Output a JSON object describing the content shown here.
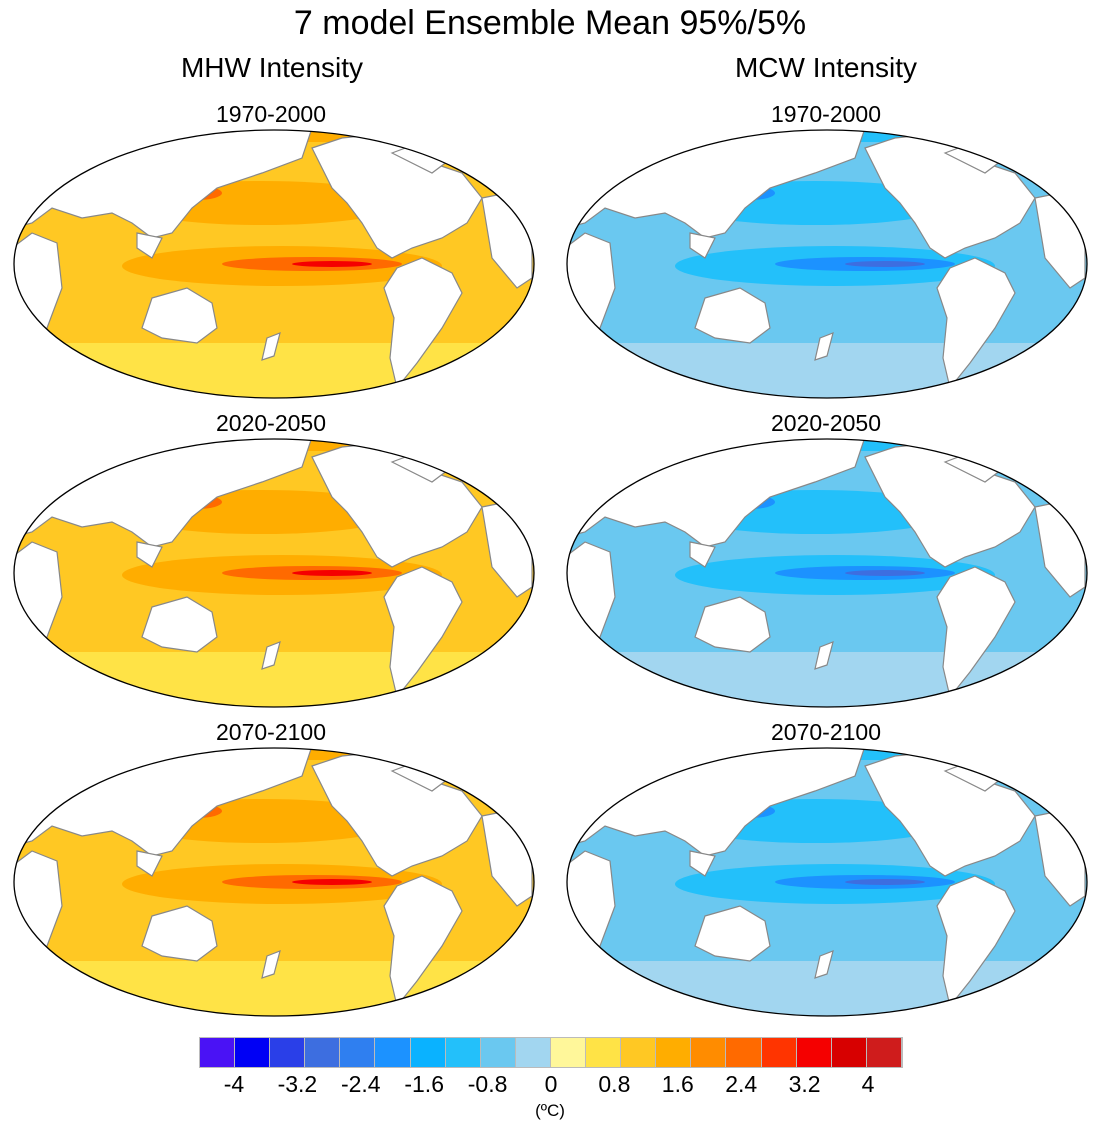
{
  "title": "7 model Ensemble Mean 95%/5%",
  "columns": [
    "MHW Intensity",
    "MCW Intensity"
  ],
  "periods": [
    "1970-2000",
    "2020-2050",
    "2070-2100"
  ],
  "chart_data": {
    "type": "heatmap",
    "title": "7 model Ensemble Mean 95%/5%",
    "panels": [
      {
        "variable": "MHW Intensity",
        "period": "1970-2000",
        "typical_range": [
          0.8,
          2.0
        ],
        "max_region": "equatorial Pacific",
        "max_value": 3.2
      },
      {
        "variable": "MHW Intensity",
        "period": "2020-2050",
        "typical_range": [
          0.8,
          2.0
        ],
        "max_region": "equatorial Pacific",
        "max_value": 3.2
      },
      {
        "variable": "MHW Intensity",
        "period": "2070-2100",
        "typical_range": [
          0.8,
          2.0
        ],
        "max_region": "equatorial Pacific",
        "max_value": 2.8
      },
      {
        "variable": "MCW Intensity",
        "period": "1970-2000",
        "typical_range": [
          -1.6,
          -0.4
        ],
        "min_region": "equatorial Pacific",
        "min_value": -3.2
      },
      {
        "variable": "MCW Intensity",
        "period": "2020-2050",
        "typical_range": [
          -1.6,
          -0.4
        ],
        "min_region": "equatorial Pacific",
        "min_value": -3.2
      },
      {
        "variable": "MCW Intensity",
        "period": "2070-2100",
        "typical_range": [
          -1.6,
          -0.4
        ],
        "min_region": "equatorial Pacific",
        "min_value": -2.8
      }
    ],
    "colorbar": {
      "labels": [
        "-4",
        "-3.2",
        "-2.4",
        "-1.6",
        "-0.8",
        "0",
        "0.8",
        "1.6",
        "2.4",
        "3.2",
        "4"
      ],
      "unit": "(ºC)",
      "colors": [
        "#4a12f5",
        "#0000f5",
        "#2a3fe8",
        "#3d6ee0",
        "#2f7ff0",
        "#1c92ff",
        "#0ab2ff",
        "#23c0fa",
        "#6ac8f0",
        "#a2d6f0",
        "#c6e6f6",
        "#fff79a",
        "#ffe346",
        "#ffc823",
        "#ffad00",
        "#ff8c00",
        "#ff6a00",
        "#ff3400",
        "#f50000",
        "#d70000",
        "#cf1c1c",
        "#ee7575"
      ]
    }
  }
}
